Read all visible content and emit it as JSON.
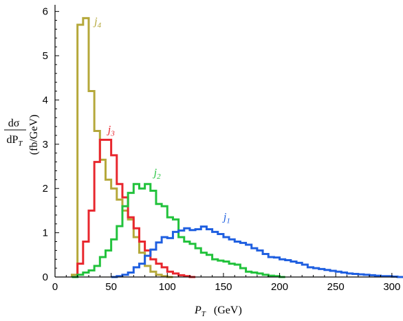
{
  "chart_data": {
    "type": "histogram",
    "xlim": [
      0,
      305
    ],
    "ylim": [
      0,
      6.15
    ],
    "x_ticks": [
      0,
      50,
      100,
      150,
      200,
      250,
      300
    ],
    "y_ticks": [
      0,
      1,
      2,
      3,
      4,
      5,
      6
    ],
    "xlabel": {
      "main": "P",
      "sub": "T",
      "unit": "(GeV)"
    },
    "ylabel": {
      "num": "dσ",
      "den": "dP",
      "den_sub": "T",
      "unit": "(fb/GeV)"
    },
    "grid": false,
    "bin_width": 5,
    "series": [
      {
        "name": "j",
        "subscript": "4",
        "color": "#b5a83a",
        "label_at": [
          35,
          5.7
        ],
        "bins_start": 15,
        "values": [
          0.05,
          5.7,
          5.85,
          4.2,
          3.3,
          2.65,
          2.2,
          2.0,
          1.75,
          1.5,
          1.3,
          0.9,
          0.55,
          0.25,
          0.12,
          0.05,
          0.02,
          0.0
        ]
      },
      {
        "name": "j",
        "subscript": "3",
        "color": "#e8262d",
        "label_at": [
          47,
          3.25
        ],
        "bins_start": 15,
        "values": [
          0.0,
          0.3,
          0.8,
          1.5,
          2.6,
          3.1,
          3.1,
          2.75,
          2.1,
          1.8,
          1.35,
          1.1,
          0.8,
          0.6,
          0.4,
          0.3,
          0.22,
          0.12,
          0.08,
          0.04,
          0.02,
          0.0
        ]
      },
      {
        "name": "j",
        "subscript": "2",
        "color": "#22c23c",
        "label_at": [
          88,
          2.28
        ],
        "bins_start": 15,
        "values": [
          0.0,
          0.05,
          0.1,
          0.15,
          0.25,
          0.45,
          0.6,
          0.85,
          1.15,
          1.6,
          1.9,
          2.1,
          2.0,
          2.1,
          1.95,
          1.65,
          1.6,
          1.35,
          1.3,
          0.9,
          0.8,
          0.75,
          0.65,
          0.55,
          0.5,
          0.4,
          0.37,
          0.35,
          0.3,
          0.28,
          0.2,
          0.12,
          0.1,
          0.08,
          0.05,
          0.03,
          0.02,
          0.0
        ]
      },
      {
        "name": "j",
        "subscript": "1",
        "color": "#1f5fe0",
        "label_at": [
          150,
          1.28
        ],
        "bins_start": 50,
        "values": [
          0.0,
          0.02,
          0.05,
          0.1,
          0.22,
          0.3,
          0.48,
          0.62,
          0.78,
          0.9,
          0.88,
          1.02,
          1.05,
          1.1,
          1.06,
          1.08,
          1.14,
          1.08,
          1.02,
          0.97,
          0.9,
          0.85,
          0.8,
          0.77,
          0.73,
          0.65,
          0.6,
          0.52,
          0.45,
          0.44,
          0.4,
          0.38,
          0.35,
          0.32,
          0.28,
          0.22,
          0.2,
          0.18,
          0.16,
          0.14,
          0.12,
          0.1,
          0.08,
          0.07,
          0.06,
          0.05,
          0.04,
          0.03,
          0.02,
          0.02,
          0.01,
          0.0
        ]
      }
    ]
  }
}
